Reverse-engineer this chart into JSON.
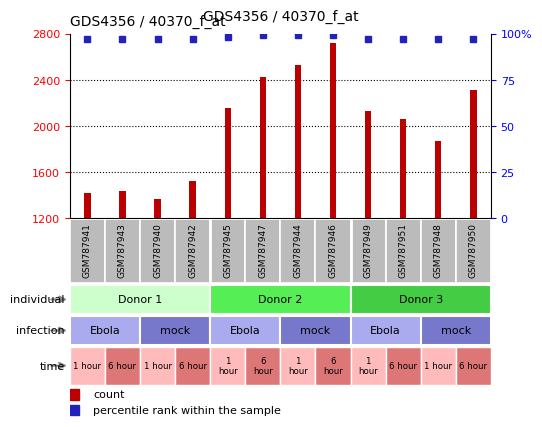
{
  "title": "GDS4356 / 40370_f_at",
  "samples": [
    "GSM787941",
    "GSM787943",
    "GSM787940",
    "GSM787942",
    "GSM787945",
    "GSM787947",
    "GSM787944",
    "GSM787946",
    "GSM787949",
    "GSM787951",
    "GSM787948",
    "GSM787950"
  ],
  "counts": [
    1420,
    1430,
    1360,
    1520,
    2150,
    2420,
    2530,
    2720,
    2130,
    2060,
    1870,
    2310
  ],
  "dot_y_values": [
    97,
    97,
    97,
    97,
    98,
    99,
    99,
    99,
    97,
    97,
    97,
    97
  ],
  "ylim_left": [
    1200,
    2800
  ],
  "ylim_right": [
    0,
    100
  ],
  "yticks_left": [
    1200,
    1600,
    2000,
    2400,
    2800
  ],
  "yticks_right": [
    0,
    25,
    50,
    75,
    100
  ],
  "bar_color": "#bb0000",
  "dot_color": "#2222bb",
  "donors": [
    {
      "label": "Donor 1",
      "start": 0,
      "end": 4,
      "color": "#ccffcc"
    },
    {
      "label": "Donor 2",
      "start": 4,
      "end": 8,
      "color": "#55ee55"
    },
    {
      "label": "Donor 3",
      "start": 8,
      "end": 12,
      "color": "#44cc44"
    }
  ],
  "infections": [
    {
      "label": "Ebola",
      "start": 0,
      "end": 2,
      "color": "#aaaaee"
    },
    {
      "label": "mock",
      "start": 2,
      "end": 4,
      "color": "#7777cc"
    },
    {
      "label": "Ebola",
      "start": 4,
      "end": 6,
      "color": "#aaaaee"
    },
    {
      "label": "mock",
      "start": 6,
      "end": 8,
      "color": "#7777cc"
    },
    {
      "label": "Ebola",
      "start": 8,
      "end": 10,
      "color": "#aaaaee"
    },
    {
      "label": "mock",
      "start": 10,
      "end": 12,
      "color": "#7777cc"
    }
  ],
  "times": [
    {
      "label": "1 hour",
      "start": 0,
      "end": 1,
      "color": "#ffbbbb"
    },
    {
      "label": "6 hour",
      "start": 1,
      "end": 2,
      "color": "#dd7777"
    },
    {
      "label": "1 hour",
      "start": 2,
      "end": 3,
      "color": "#ffbbbb"
    },
    {
      "label": "6 hour",
      "start": 3,
      "end": 4,
      "color": "#dd7777"
    },
    {
      "label": "1\nhour",
      "start": 4,
      "end": 5,
      "color": "#ffbbbb"
    },
    {
      "label": "6\nhour",
      "start": 5,
      "end": 6,
      "color": "#dd7777"
    },
    {
      "label": "1\nhour",
      "start": 6,
      "end": 7,
      "color": "#ffbbbb"
    },
    {
      "label": "6\nhour",
      "start": 7,
      "end": 8,
      "color": "#dd7777"
    },
    {
      "label": "1\nhour",
      "start": 8,
      "end": 9,
      "color": "#ffbbbb"
    },
    {
      "label": "6 hour",
      "start": 9,
      "end": 10,
      "color": "#dd7777"
    },
    {
      "label": "1 hour",
      "start": 10,
      "end": 11,
      "color": "#ffbbbb"
    },
    {
      "label": "6 hour",
      "start": 11,
      "end": 12,
      "color": "#dd7777"
    }
  ],
  "label_individual": "individual",
  "label_infection": "infection",
  "label_time": "time",
  "legend_count": "count",
  "legend_percentile": "percentile rank within the sample",
  "background_color": "#ffffff",
  "xtick_bg": "#bbbbbb",
  "separator_color": "#ffffff"
}
